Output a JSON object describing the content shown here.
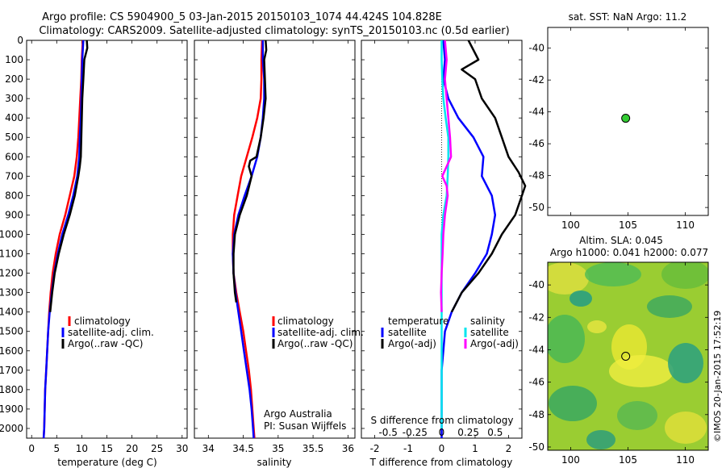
{
  "title_line1": "Argo profile: CS 5904900_5 03-Jan-2015 20150103_1074 44.424S 104.828E",
  "title_line2": "Climatology: CARS2009. Satellite-adjusted climatology: synTS_20150103.nc (0.5d earlier)",
  "credit": "Argo Australia",
  "pi": "PI: Susan Wijffels",
  "stamp": "©IMOS 20-Jan-2015 17:52:19",
  "colors": {
    "climatology": "#ff0000",
    "satellite": "#0000ff",
    "argo": "#000000",
    "sat_salinity": "#00e5ee",
    "argo_salinity": "#ff00ff",
    "dot": "#33cc33"
  },
  "chart_data": [
    {
      "type": "line",
      "xlabel": "temperature (deg C)",
      "xlim": [
        -1,
        31
      ],
      "xticks": [
        0,
        5,
        10,
        15,
        20,
        25,
        30
      ],
      "ylim": [
        2050,
        0
      ],
      "yticks": [
        0,
        100,
        200,
        300,
        400,
        500,
        600,
        700,
        800,
        900,
        1000,
        1100,
        1200,
        1300,
        1400,
        1500,
        1600,
        1700,
        1800,
        1900,
        2000
      ],
      "legend": [
        "climatology",
        "satellite-adj. clim.",
        "Argo(..raw -QC)"
      ],
      "series": [
        {
          "name": "climatology",
          "color": "#ff0000",
          "points": [
            [
              10.2,
              0
            ],
            [
              10,
              100
            ],
            [
              9.9,
              200
            ],
            [
              9.7,
              300
            ],
            [
              9.5,
              400
            ],
            [
              9.3,
              500
            ],
            [
              9,
              600
            ],
            [
              8.5,
              700
            ],
            [
              7.6,
              800
            ],
            [
              6.7,
              900
            ],
            [
              5.6,
              1000
            ],
            [
              4.8,
              1100
            ],
            [
              4.2,
              1200
            ],
            [
              3.8,
              1300
            ],
            [
              3.5,
              1400
            ],
            [
              3.3,
              1500
            ],
            [
              3.1,
              1600
            ],
            [
              2.9,
              1700
            ],
            [
              2.7,
              1800
            ],
            [
              2.6,
              1900
            ],
            [
              2.5,
              2000
            ],
            [
              2.4,
              2050
            ]
          ]
        },
        {
          "name": "satellite-adj. clim.",
          "color": "#0000ff",
          "points": [
            [
              10.3,
              0
            ],
            [
              10.1,
              100
            ],
            [
              10,
              200
            ],
            [
              9.9,
              300
            ],
            [
              9.8,
              400
            ],
            [
              9.6,
              500
            ],
            [
              9.5,
              600
            ],
            [
              9.1,
              700
            ],
            [
              8.3,
              800
            ],
            [
              7.3,
              900
            ],
            [
              6.1,
              1000
            ],
            [
              5.2,
              1100
            ],
            [
              4.5,
              1200
            ],
            [
              4,
              1300
            ],
            [
              3.6,
              1400
            ],
            [
              3.3,
              1500
            ],
            [
              3.1,
              1600
            ],
            [
              2.9,
              1700
            ],
            [
              2.7,
              1800
            ],
            [
              2.6,
              1900
            ],
            [
              2.5,
              2000
            ],
            [
              2.4,
              2050
            ]
          ]
        },
        {
          "name": "Argo(..raw -QC)",
          "color": "#000000",
          "points": [
            [
              11,
              0
            ],
            [
              11.1,
              40
            ],
            [
              10.5,
              100
            ],
            [
              10.3,
              200
            ],
            [
              10.1,
              300
            ],
            [
              10,
              400
            ],
            [
              9.9,
              500
            ],
            [
              9.8,
              600
            ],
            [
              9.6,
              650
            ],
            [
              9.3,
              700
            ],
            [
              8.6,
              800
            ],
            [
              7.6,
              900
            ],
            [
              6.4,
              1000
            ],
            [
              5.4,
              1100
            ],
            [
              4.6,
              1200
            ],
            [
              4.1,
              1300
            ],
            [
              3.7,
              1400
            ]
          ]
        }
      ]
    },
    {
      "type": "line",
      "xlabel": "salinity",
      "xlim": [
        33.8,
        36.1
      ],
      "xticks": [
        34,
        34.5,
        35,
        35.5,
        36
      ],
      "ylim": [
        2050,
        0
      ],
      "legend": [
        "climatology",
        "satellite-adj. clim.",
        "Argo(..raw -QC)"
      ],
      "series": [
        {
          "name": "climatology",
          "color": "#ff0000",
          "points": [
            [
              34.77,
              0
            ],
            [
              34.76,
              100
            ],
            [
              34.76,
              200
            ],
            [
              34.75,
              300
            ],
            [
              34.7,
              400
            ],
            [
              34.63,
              500
            ],
            [
              34.55,
              600
            ],
            [
              34.47,
              700
            ],
            [
              34.42,
              800
            ],
            [
              34.37,
              900
            ],
            [
              34.35,
              1000
            ],
            [
              34.35,
              1100
            ],
            [
              34.36,
              1200
            ],
            [
              34.4,
              1300
            ],
            [
              34.45,
              1400
            ],
            [
              34.5,
              1500
            ],
            [
              34.54,
              1600
            ],
            [
              34.58,
              1700
            ],
            [
              34.61,
              1800
            ],
            [
              34.63,
              1900
            ],
            [
              34.65,
              2000
            ],
            [
              34.66,
              2050
            ]
          ]
        },
        {
          "name": "satellite-adj. clim.",
          "color": "#0000ff",
          "points": [
            [
              34.78,
              0
            ],
            [
              34.78,
              100
            ],
            [
              34.8,
              200
            ],
            [
              34.8,
              300
            ],
            [
              34.78,
              400
            ],
            [
              34.75,
              500
            ],
            [
              34.7,
              600
            ],
            [
              34.62,
              700
            ],
            [
              34.52,
              800
            ],
            [
              34.43,
              900
            ],
            [
              34.37,
              1000
            ],
            [
              34.35,
              1100
            ],
            [
              34.36,
              1200
            ],
            [
              34.39,
              1300
            ],
            [
              34.43,
              1400
            ],
            [
              34.47,
              1500
            ],
            [
              34.51,
              1600
            ],
            [
              34.55,
              1700
            ],
            [
              34.59,
              1800
            ],
            [
              34.62,
              1900
            ],
            [
              34.64,
              2000
            ],
            [
              34.65,
              2050
            ]
          ]
        },
        {
          "name": "Argo(..raw -QC)",
          "color": "#000000",
          "points": [
            [
              34.82,
              0
            ],
            [
              34.83,
              50
            ],
            [
              34.8,
              100
            ],
            [
              34.81,
              200
            ],
            [
              34.82,
              300
            ],
            [
              34.79,
              400
            ],
            [
              34.75,
              500
            ],
            [
              34.69,
              600
            ],
            [
              34.6,
              620
            ],
            [
              34.58,
              650
            ],
            [
              34.62,
              700
            ],
            [
              34.55,
              800
            ],
            [
              34.45,
              900
            ],
            [
              34.38,
              1000
            ],
            [
              34.36,
              1100
            ],
            [
              34.36,
              1200
            ],
            [
              34.38,
              1300
            ],
            [
              34.4,
              1350
            ]
          ]
        }
      ]
    },
    {
      "type": "line",
      "xlabel": "T difference from climatology",
      "xlim": [
        -2.4,
        2.4
      ],
      "xticks": [
        -2,
        -1,
        0,
        1,
        2
      ],
      "xlabel_top": "S difference from climatology",
      "xticks_top": [
        "-0.5",
        "-0.25",
        "0",
        "0.25",
        "0.5"
      ],
      "ylim": [
        2050,
        0
      ],
      "legend_headers": [
        "temperature",
        "salinity"
      ],
      "legend": [
        "satellite",
        "Argo(-adj)",
        "satellite",
        "Argo(-adj)"
      ],
      "series": [
        {
          "name": "satellite",
          "color": "#0000ff",
          "points": [
            [
              0.05,
              0
            ],
            [
              0.1,
              100
            ],
            [
              0.05,
              200
            ],
            [
              0.2,
              300
            ],
            [
              0.5,
              400
            ],
            [
              0.95,
              500
            ],
            [
              1.25,
              600
            ],
            [
              1.2,
              700
            ],
            [
              1.5,
              800
            ],
            [
              1.6,
              900
            ],
            [
              1.5,
              1000
            ],
            [
              1.35,
              1100
            ],
            [
              1,
              1200
            ],
            [
              0.6,
              1300
            ],
            [
              0.3,
              1400
            ],
            [
              0.1,
              1500
            ],
            [
              0.05,
              1600
            ],
            [
              0,
              1700
            ],
            [
              0,
              1800
            ],
            [
              0,
              1900
            ],
            [
              0,
              2000
            ],
            [
              0,
              2050
            ]
          ]
        },
        {
          "name": "Argo(-adj)",
          "color": "#000000",
          "points": [
            [
              0.8,
              0
            ],
            [
              1.1,
              100
            ],
            [
              0.6,
              150
            ],
            [
              1.0,
              200
            ],
            [
              1.2,
              300
            ],
            [
              1.6,
              400
            ],
            [
              1.8,
              500
            ],
            [
              2.0,
              600
            ],
            [
              2.3,
              680
            ],
            [
              2.5,
              750
            ],
            [
              2.4,
              800
            ],
            [
              2.2,
              900
            ],
            [
              1.8,
              1000
            ],
            [
              1.5,
              1100
            ],
            [
              1.1,
              1200
            ],
            [
              0.6,
              1300
            ],
            [
              0.3,
              1400
            ]
          ]
        },
        {
          "name": "satellite",
          "color": "#00e5ee",
          "points": [
            [
              0,
              0
            ],
            [
              0,
              100
            ],
            [
              0.02,
              200
            ],
            [
              0.05,
              300
            ],
            [
              0.12,
              400
            ],
            [
              0.2,
              500
            ],
            [
              0.2,
              600
            ],
            [
              0.18,
              700
            ],
            [
              0.15,
              800
            ],
            [
              0.05,
              900
            ],
            [
              0,
              1000
            ],
            [
              0,
              1100
            ],
            [
              0,
              1200
            ],
            [
              0,
              1300
            ],
            [
              0,
              1400
            ],
            [
              0,
              1500
            ],
            [
              0,
              1600
            ],
            [
              0,
              1700
            ],
            [
              0,
              1800
            ],
            [
              0,
              1900
            ],
            [
              0,
              2000
            ]
          ]
        },
        {
          "name": "Argo(-adj)",
          "color": "#ff00ff",
          "points": [
            [
              0.1,
              0
            ],
            [
              0.15,
              100
            ],
            [
              0.1,
              200
            ],
            [
              0.15,
              300
            ],
            [
              0.2,
              400
            ],
            [
              0.25,
              500
            ],
            [
              0.28,
              600
            ],
            [
              0.02,
              700
            ],
            [
              0.15,
              750
            ],
            [
              0.18,
              800
            ],
            [
              0.1,
              900
            ],
            [
              0.05,
              1000
            ],
            [
              0.03,
              1100
            ],
            [
              0,
              1200
            ],
            [
              -0.02,
              1300
            ],
            [
              0,
              1400
            ]
          ]
        }
      ]
    },
    {
      "type": "scatter",
      "title": "sat. SST: NaN Argo: 11.2",
      "xlim": [
        98,
        112
      ],
      "ylim": [
        -50.5,
        -38.7
      ],
      "xticks": [
        100,
        105,
        110
      ],
      "yticks": [
        -40,
        -42,
        -44,
        -46,
        -48,
        -50
      ],
      "points": [
        [
          104.8,
          -44.4
        ]
      ]
    },
    {
      "type": "heatmap",
      "title_line1": "Altim. SLA: 0.045",
      "title_line2": "Argo h1000: 0.041 h2000: 0.077",
      "xlim": [
        98,
        112
      ],
      "ylim": [
        -50.2,
        -38.6
      ],
      "xticks": [
        100,
        105,
        110
      ],
      "yticks": [
        -40,
        -42,
        -44,
        -46,
        -48,
        -50
      ],
      "points": [
        [
          104.8,
          -44.4
        ]
      ]
    }
  ]
}
